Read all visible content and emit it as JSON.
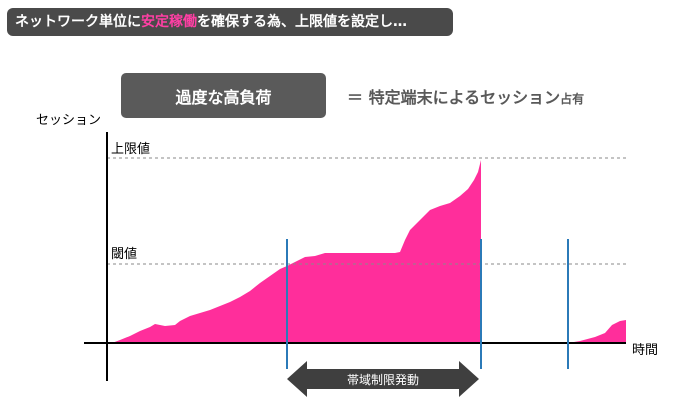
{
  "banner": {
    "text_pre": "ネットワーク単位に",
    "text_highlight": "安定稼働",
    "text_post": "を確保する為、上限値を設定し…"
  },
  "callout": {
    "label": "過度な高負荷",
    "equals_text": "＝ 特定端末によるセッション",
    "equals_small": "占有"
  },
  "axes": {
    "y_label": "セッション",
    "x_label": "時間"
  },
  "lines": {
    "upper_limit": "上限値",
    "threshold": "閾値"
  },
  "arrow": {
    "label": "帯域制限発動"
  },
  "colors": {
    "fill": "#ff2e9b",
    "marker": "#2b7ab8",
    "banner_bg": "#4a4a4a",
    "highlight": "#ff3fa4"
  }
}
